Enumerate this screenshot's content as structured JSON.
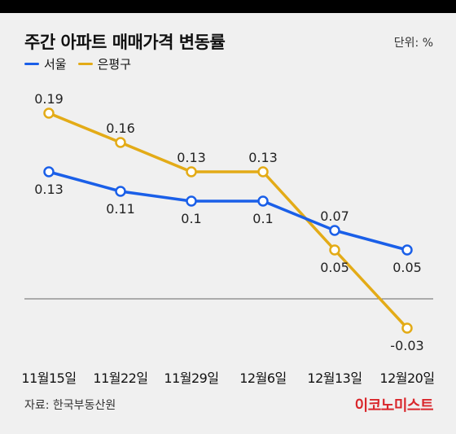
{
  "header": {
    "title": "주간 아파트 매매가격 변동률",
    "unit": "단위: %"
  },
  "footer": {
    "source": "자료: 한국부동산원",
    "logo": "이코노미스트"
  },
  "colors": {
    "series_1": "#1a5fe8",
    "series_2": "#e3ab17",
    "baseline": "#666666",
    "logo": "#d9262b",
    "background": "#f0f0f0"
  },
  "chart_data": {
    "type": "line",
    "title": "주간 아파트 매매가격 변동률",
    "unit": "단위: %",
    "categories": [
      "11월15일",
      "11월22일",
      "11월29일",
      "12월6일",
      "12월13일",
      "12월20일"
    ],
    "series": [
      {
        "name": "서울",
        "values": [
          0.13,
          0.11,
          0.1,
          0.1,
          0.07,
          0.05
        ],
        "labels": [
          "0.13",
          "0.11",
          "0.1",
          "0.1",
          "0.07",
          "0.05"
        ],
        "color": "#1a5fe8"
      },
      {
        "name": "은평구",
        "values": [
          0.19,
          0.16,
          0.13,
          0.13,
          0.05,
          -0.03
        ],
        "labels": [
          "0.19",
          "0.16",
          "0.13",
          "0.13",
          "0.05",
          "-0.03"
        ],
        "color": "#e3ab17"
      }
    ],
    "zero_line": true,
    "grid": false,
    "legend": "top-left"
  }
}
